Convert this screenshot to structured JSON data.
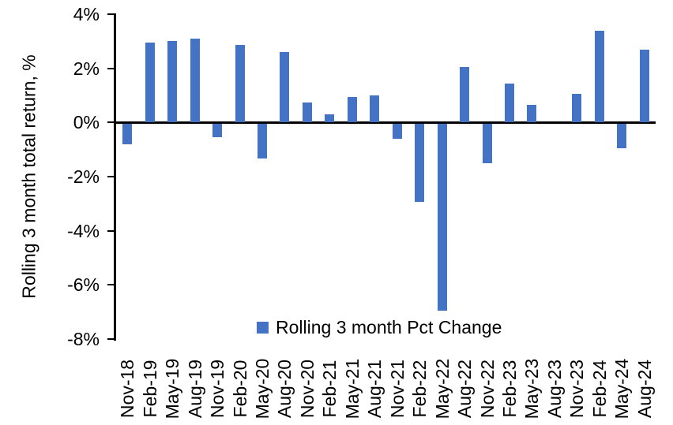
{
  "chart_data": {
    "type": "bar",
    "title": "",
    "xlabel": "",
    "ylabel": "Rolling 3 month total return, %",
    "legend": {
      "label": "Rolling 3 month Pct Change",
      "position": "bottom-center-inside"
    },
    "ylim": [
      -8,
      4
    ],
    "ytick_step": 2,
    "yticks": [
      4,
      2,
      0,
      -2,
      -4,
      -6,
      -8
    ],
    "ytick_labels": [
      "4%",
      "2%",
      "0%",
      "-2%",
      "-4%",
      "-6%",
      "-8%"
    ],
    "grid": false,
    "categories": [
      "Nov-18",
      "Feb-19",
      "May-19",
      "Aug-19",
      "Nov-19",
      "Feb-20",
      "May-20",
      "Aug-20",
      "Nov-20",
      "Feb-21",
      "May-21",
      "Aug-21",
      "Nov-21",
      "Feb-22",
      "May-22",
      "Aug-22",
      "Nov-22",
      "Feb-23",
      "May-23",
      "Aug-23",
      "Nov-23",
      "Feb-24",
      "May-24",
      "Aug-24"
    ],
    "values": [
      -0.75,
      2.95,
      3.0,
      3.1,
      -0.5,
      2.85,
      -1.3,
      2.6,
      0.75,
      0.3,
      0.95,
      1.0,
      -0.55,
      -2.9,
      -6.9,
      2.05,
      -1.45,
      1.45,
      0.65,
      0.0,
      1.05,
      3.4,
      -0.9,
      2.7
    ],
    "colors": {
      "bar": "#4472C4",
      "axis": "#000000",
      "text": "#000000",
      "background": "#FFFFFF"
    }
  }
}
